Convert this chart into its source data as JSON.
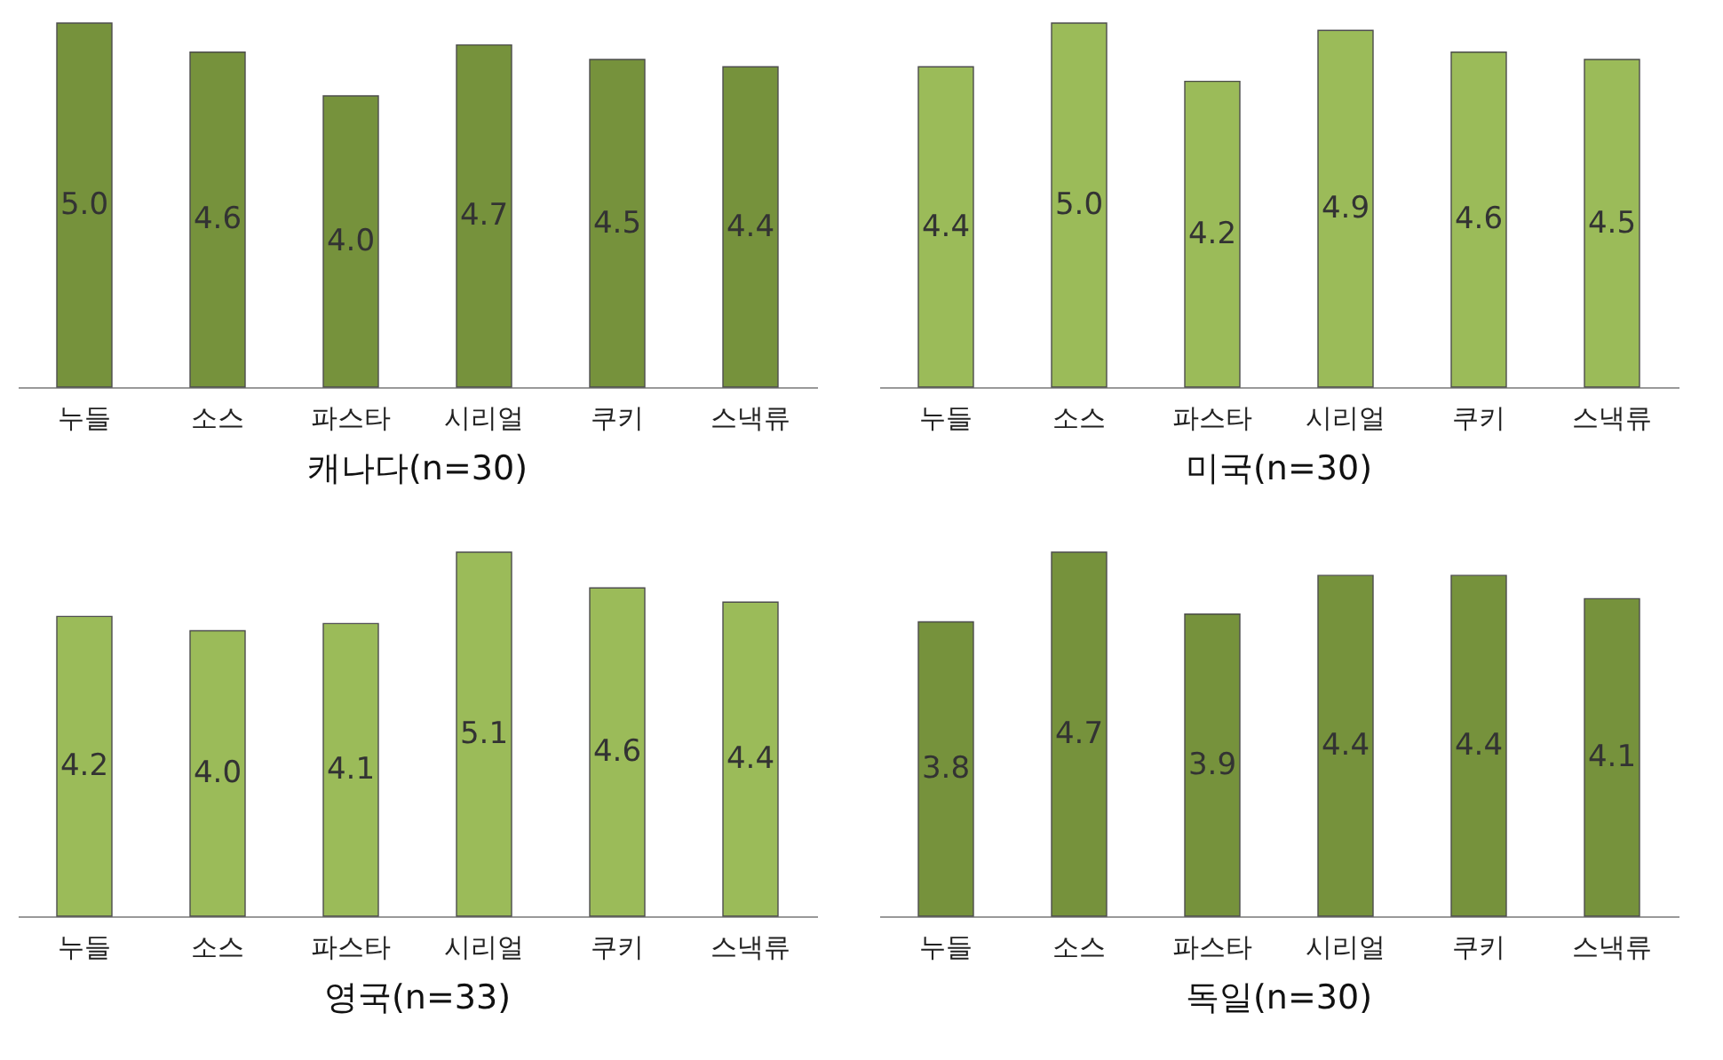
{
  "chart_data": [
    {
      "type": "bar",
      "title": "캐나다(n=30)",
      "categories": [
        "누들",
        "소스",
        "파스타",
        "시리얼",
        "쿠키",
        "스낵류"
      ],
      "values": [
        5.0,
        4.6,
        4.0,
        4.7,
        4.5,
        4.4
      ],
      "color": "#76923c",
      "data_labels": true,
      "value_labels": [
        "5.0",
        "4.6",
        "4.0",
        "4.7",
        "4.5",
        "4.4"
      ]
    },
    {
      "type": "bar",
      "title": "미국(n=30)",
      "categories": [
        "누들",
        "소스",
        "파스타",
        "시리얼",
        "쿠키",
        "스낵류"
      ],
      "values": [
        4.4,
        5.0,
        4.2,
        4.9,
        4.6,
        4.5
      ],
      "color": "#9bbb59",
      "data_labels": true,
      "value_labels": [
        "4.4",
        "5.0",
        "4.2",
        "4.9",
        "4.6",
        "4.5"
      ]
    },
    {
      "type": "bar",
      "title": "영국(n=33)",
      "categories": [
        "누들",
        "소스",
        "파스타",
        "시리얼",
        "쿠키",
        "스낵류"
      ],
      "values": [
        4.2,
        4.0,
        4.1,
        5.1,
        4.6,
        4.4
      ],
      "color": "#9bbb59",
      "data_labels": true,
      "value_labels": [
        "4.2",
        "4.0",
        "4.1",
        "5.1",
        "4.6",
        "4.4"
      ]
    },
    {
      "type": "bar",
      "title": "독일(n=30)",
      "categories": [
        "누들",
        "소스",
        "파스타",
        "시리얼",
        "쿠키",
        "스낵류"
      ],
      "values": [
        3.8,
        4.7,
        3.9,
        4.4,
        4.4,
        4.1
      ],
      "color": "#76923c",
      "data_labels": true,
      "value_labels": [
        "3.8",
        "4.7",
        "3.9",
        "4.4",
        "4.4",
        "4.1"
      ]
    }
  ]
}
